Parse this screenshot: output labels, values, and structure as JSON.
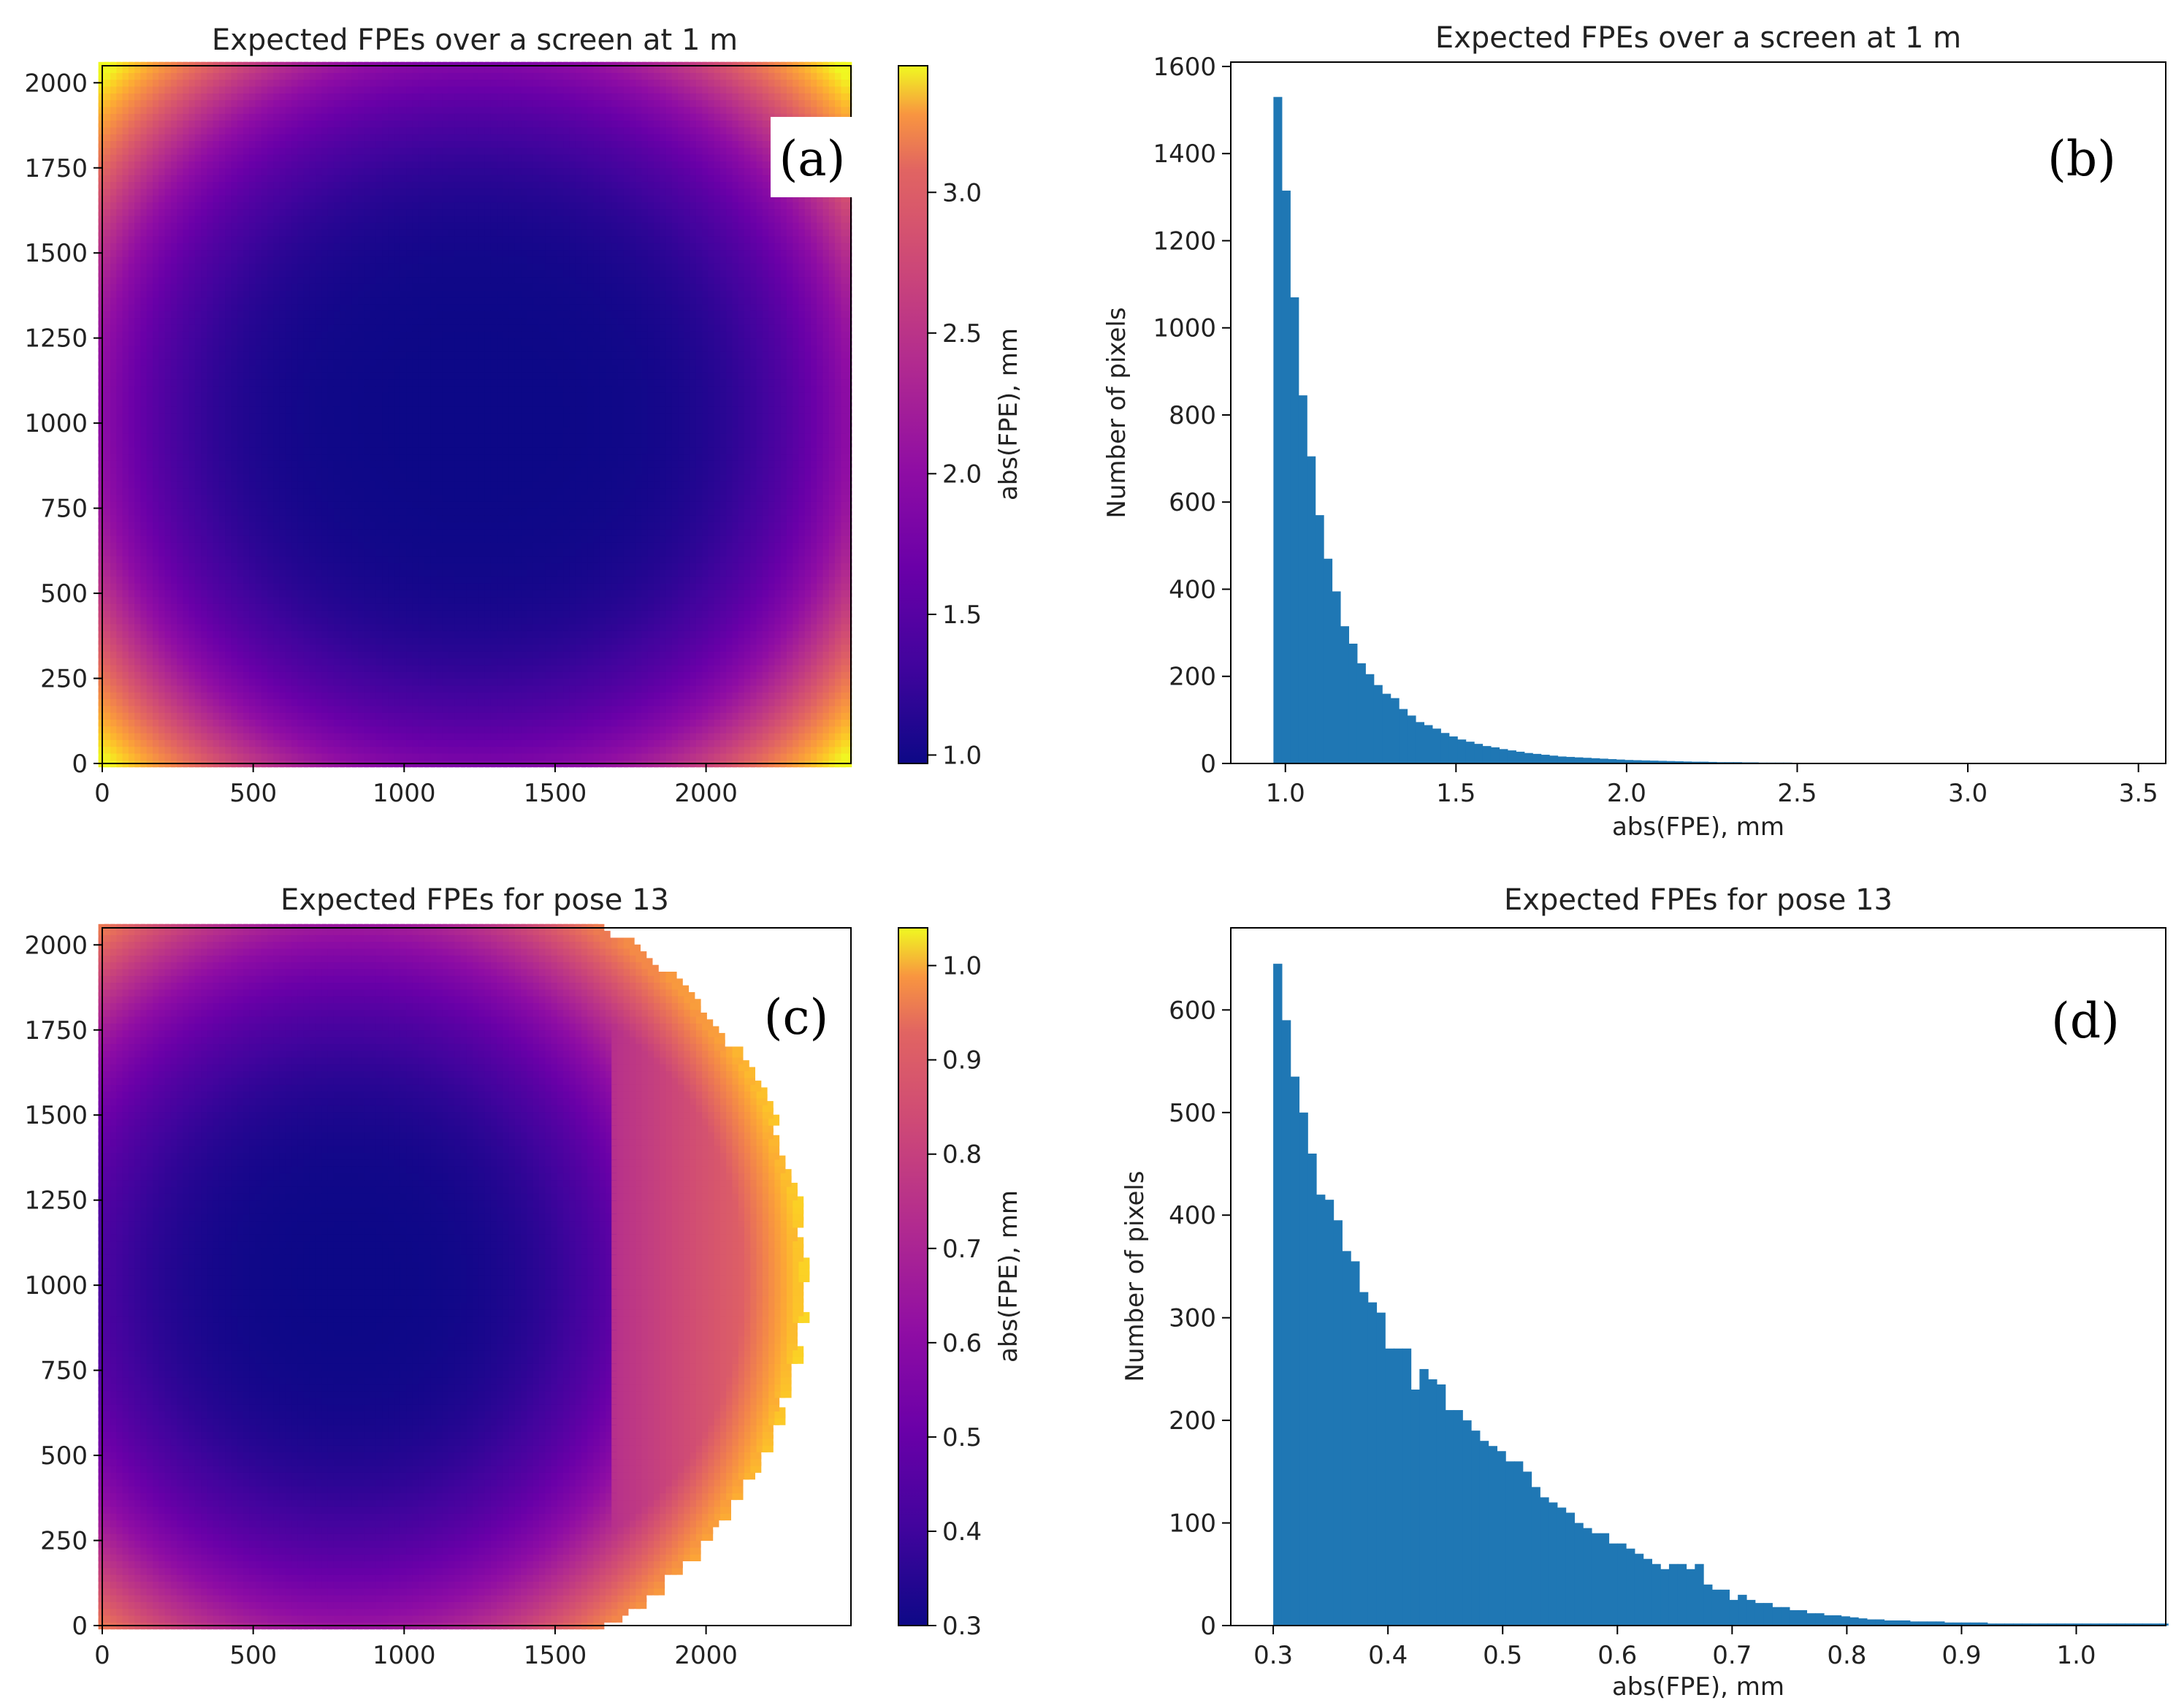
{
  "figure": {
    "panel_a": {
      "label": "(a)",
      "title": "Expected FPEs over a screen at 1 m",
      "colorbar_label": "abs(FPE), mm"
    },
    "panel_b": {
      "label": "(b)",
      "title": "Expected FPEs over a screen at 1 m"
    },
    "panel_c": {
      "label": "(c)",
      "title": "Expected FPEs for pose 13",
      "colorbar_label": "abs(FPE), mm"
    },
    "panel_d": {
      "label": "(d)",
      "title": "Expected FPEs for pose 13"
    }
  },
  "chart_data": [
    {
      "id": "a",
      "type": "heatmap",
      "title": "Expected FPEs over a screen at 1 m",
      "colormap": "plasma",
      "x_range": [
        0,
        2480
      ],
      "y_range": [
        0,
        2050
      ],
      "x_ticks": [
        0,
        500,
        1000,
        1500,
        2000
      ],
      "x_tick_labels": [
        "0",
        "500",
        "1000",
        "1500",
        "2000"
      ],
      "y_ticks": [
        0,
        250,
        500,
        750,
        1000,
        1250,
        1500,
        1750,
        2000
      ],
      "y_tick_labels": [
        "0",
        "250",
        "500",
        "750",
        "1000",
        "1250",
        "1500",
        "1750",
        "2000"
      ],
      "colorbar": {
        "label": "abs(FPE), mm",
        "range": [
          0.97,
          3.45
        ],
        "ticks": [
          1.0,
          1.5,
          2.0,
          2.5,
          3.0
        ],
        "tick_labels": [
          "1.0",
          "1.5",
          "2.0",
          "2.5",
          "3.0"
        ]
      },
      "description_model": {
        "min": 0.97,
        "max": 3.45,
        "center": [
          1240,
          1025
        ]
      }
    },
    {
      "id": "b",
      "type": "bar",
      "title": "Expected FPEs over a screen at 1 m",
      "xlabel": "abs(FPE), mm",
      "ylabel": "Number of pixels",
      "xlim": [
        0.84,
        3.58
      ],
      "ylim": [
        0,
        1610
      ],
      "x_ticks": [
        1.0,
        1.5,
        2.0,
        2.5,
        3.0,
        3.5
      ],
      "x_tick_labels": [
        "1.0",
        "1.5",
        "2.0",
        "2.5",
        "3.0",
        "3.5"
      ],
      "y_ticks": [
        0,
        200,
        400,
        600,
        800,
        1000,
        1200,
        1400,
        1600
      ],
      "y_tick_labels": [
        "0",
        "200",
        "400",
        "600",
        "800",
        "1000",
        "1200",
        "1400",
        "1600"
      ],
      "bin_start": 0.965,
      "bin_width": 0.0245,
      "values": [
        1530,
        1315,
        1070,
        845,
        705,
        570,
        470,
        395,
        315,
        275,
        230,
        205,
        180,
        160,
        150,
        125,
        110,
        95,
        88,
        80,
        70,
        62,
        55,
        50,
        45,
        40,
        37,
        33,
        30,
        27,
        24,
        22,
        20,
        18,
        16,
        15,
        14,
        13,
        12,
        11,
        10,
        9,
        8,
        7.5,
        7,
        6.5,
        6,
        5.5,
        5,
        4.5,
        4,
        4,
        3.5,
        3,
        3,
        3,
        2.5,
        2.5,
        2,
        2,
        2,
        2,
        1.5,
        1.5,
        1.5,
        1.5,
        1,
        1,
        1,
        1,
        1,
        1,
        1,
        1,
        1,
        1,
        1,
        1,
        1,
        1,
        1,
        1,
        1,
        1,
        1,
        1,
        1,
        1,
        1,
        1,
        1,
        1,
        1,
        1,
        1,
        1,
        1,
        1,
        1,
        1,
        1
      ]
    },
    {
      "id": "c",
      "type": "heatmap",
      "title": "Expected FPEs for pose 13",
      "colormap": "plasma",
      "x_range": [
        0,
        2480
      ],
      "y_range": [
        0,
        2050
      ],
      "x_ticks": [
        0,
        500,
        1000,
        1500,
        2000
      ],
      "x_tick_labels": [
        "0",
        "500",
        "1000",
        "1500",
        "2000"
      ],
      "y_ticks": [
        0,
        250,
        500,
        750,
        1000,
        1250,
        1500,
        1750,
        2000
      ],
      "y_tick_labels": [
        "0",
        "250",
        "500",
        "750",
        "1000",
        "1250",
        "1500",
        "1750",
        "2000"
      ],
      "colorbar": {
        "label": "abs(FPE), mm",
        "range": [
          0.3,
          1.04
        ],
        "ticks": [
          0.3,
          0.4,
          0.5,
          0.6,
          0.7,
          0.8,
          0.9,
          1.0
        ],
        "tick_labels": [
          "0.3",
          "0.4",
          "0.5",
          "0.6",
          "0.7",
          "0.8",
          "0.9",
          "1.0"
        ]
      },
      "description_model": {
        "min": 0.3,
        "max": 1.04,
        "center": [
          820,
          1025
        ],
        "boundary_center": [
          1000,
          1025
        ],
        "boundary_radius": [
          1320,
          1180
        ]
      }
    },
    {
      "id": "d",
      "type": "bar",
      "title": "Expected FPEs for pose 13",
      "xlabel": "abs(FPE), mm",
      "ylabel": "Number of pixels",
      "xlim": [
        0.263,
        1.078
      ],
      "ylim": [
        0,
        680
      ],
      "x_ticks": [
        0.3,
        0.4,
        0.5,
        0.6,
        0.7,
        0.8,
        0.9,
        1.0
      ],
      "x_tick_labels": [
        "0.3",
        "0.4",
        "0.5",
        "0.6",
        "0.7",
        "0.8",
        "0.9",
        "1.0"
      ],
      "y_ticks": [
        0,
        100,
        200,
        300,
        400,
        500,
        600
      ],
      "y_tick_labels": [
        "0",
        "100",
        "200",
        "300",
        "400",
        "500",
        "600"
      ],
      "bin_start": 0.3,
      "bin_width": 0.0075,
      "values": [
        645,
        590,
        535,
        500,
        460,
        420,
        415,
        395,
        365,
        355,
        325,
        315,
        305,
        270,
        270,
        270,
        230,
        250,
        240,
        235,
        210,
        210,
        200,
        190,
        180,
        175,
        170,
        160,
        160,
        150,
        135,
        125,
        120,
        115,
        110,
        100,
        95,
        90,
        90,
        80,
        80,
        75,
        70,
        65,
        60,
        55,
        60,
        60,
        55,
        60,
        40,
        35,
        35,
        25,
        30,
        25,
        22,
        22,
        18,
        18,
        15,
        15,
        12,
        12,
        10,
        10,
        9,
        8,
        7,
        6,
        6,
        5,
        5,
        5,
        4,
        4,
        4,
        4,
        3,
        3,
        3,
        3,
        3,
        2,
        2,
        2,
        2,
        2,
        2,
        2,
        2,
        2,
        2,
        2,
        2,
        2,
        2,
        2,
        2,
        2,
        2,
        2,
        2,
        2
      ]
    }
  ]
}
